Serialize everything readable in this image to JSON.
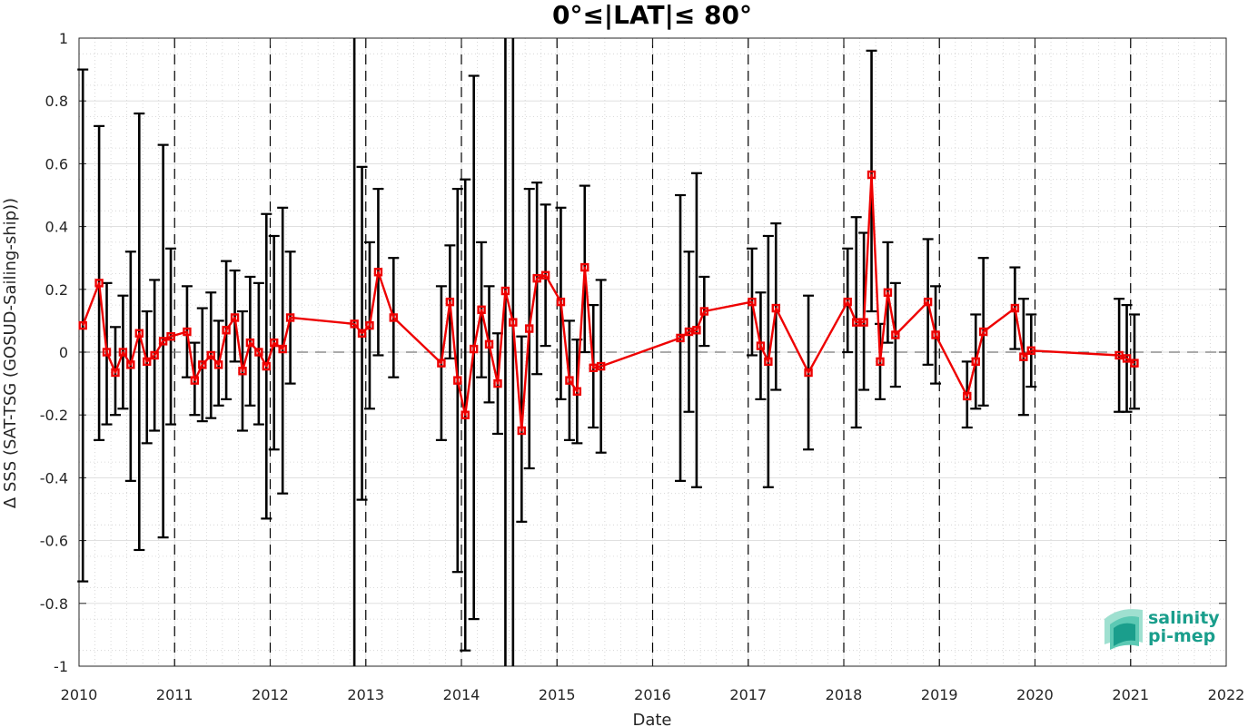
{
  "chart_data": {
    "type": "line",
    "title": "0°≤|LAT|≤ 80°",
    "xlabel": "Date",
    "ylabel": "Δ SSS (SAT-TSG (GOSUD-Sailing-ship))",
    "xlim": [
      2010,
      2022
    ],
    "ylim": [
      -1,
      1
    ],
    "x_ticks": [
      "2010",
      "2011",
      "2012",
      "2013",
      "2014",
      "2015",
      "2016",
      "2017",
      "2018",
      "2019",
      "2020",
      "2021",
      "2022"
    ],
    "y_ticks": [
      "-1",
      "-0.8",
      "-0.6",
      "-0.4",
      "-0.2",
      "0",
      "0.2",
      "0.4",
      "0.6",
      "0.8",
      "1"
    ],
    "grid": true,
    "year_separators": [
      2011,
      2012,
      2013,
      2014,
      2015,
      2016,
      2017,
      2018,
      2019,
      2020,
      2021
    ],
    "zero_line": 0,
    "series": [
      {
        "color": "#ee0000",
        "errorbar_color": "#000000",
        "x": [
          2010.04,
          2010.21,
          2010.29,
          2010.38,
          2010.46,
          2010.54,
          2010.63,
          2010.71,
          2010.79,
          2010.88,
          2010.96,
          2011.13,
          2011.21,
          2011.29,
          2011.38,
          2011.46,
          2011.54,
          2011.63,
          2011.71,
          2011.79,
          2011.88,
          2011.96,
          2012.04,
          2012.13,
          2012.21,
          2012.88,
          2012.96,
          2013.04,
          2013.13,
          2013.29,
          2013.79,
          2013.88,
          2013.96,
          2014.04,
          2014.13,
          2014.21,
          2014.29,
          2014.38,
          2014.46,
          2014.54,
          2014.63,
          2014.71,
          2014.79,
          2014.88,
          2015.04,
          2015.13,
          2015.21,
          2015.29,
          2015.38,
          2015.46,
          2016.29,
          2016.38,
          2016.46,
          2016.54,
          2017.04,
          2017.13,
          2017.21,
          2017.29,
          2017.63,
          2018.04,
          2018.13,
          2018.21,
          2018.29,
          2018.38,
          2018.46,
          2018.54,
          2018.88,
          2018.96,
          2019.29,
          2019.38,
          2019.46,
          2019.79,
          2019.88,
          2019.96,
          2020.88,
          2020.96,
          2021.04
        ],
        "y": [
          0.085,
          0.22,
          0.0,
          -0.065,
          0.0,
          -0.04,
          0.06,
          -0.03,
          -0.01,
          0.035,
          0.05,
          0.065,
          -0.09,
          -0.04,
          -0.01,
          -0.04,
          0.07,
          0.11,
          -0.06,
          0.03,
          0.0,
          -0.045,
          0.03,
          0.01,
          0.11,
          0.09,
          0.06,
          0.085,
          0.255,
          0.11,
          -0.035,
          0.16,
          -0.09,
          -0.2,
          0.01,
          0.135,
          0.025,
          -0.1,
          0.195,
          0.095,
          -0.25,
          0.075,
          0.235,
          0.245,
          0.16,
          -0.09,
          -0.125,
          0.27,
          -0.05,
          -0.045,
          0.045,
          0.065,
          0.07,
          0.13,
          0.16,
          0.02,
          -0.03,
          0.14,
          -0.065,
          0.16,
          0.095,
          0.095,
          0.565,
          -0.03,
          0.19,
          0.055,
          0.16,
          0.055,
          -0.14,
          -0.03,
          0.065,
          0.14,
          -0.015,
          0.005,
          -0.01,
          -0.02,
          -0.035
        ],
        "lower": [
          -0.73,
          -0.28,
          -0.23,
          -0.2,
          -0.18,
          -0.41,
          -0.63,
          -0.29,
          -0.25,
          -0.59,
          -0.23,
          -0.08,
          -0.2,
          -0.22,
          -0.21,
          -0.17,
          -0.15,
          -0.03,
          -0.25,
          -0.17,
          -0.23,
          -0.53,
          -0.31,
          -0.45,
          -0.1,
          -1.0,
          -0.47,
          -0.18,
          -0.01,
          -0.08,
          -0.28,
          -0.02,
          -0.7,
          -0.95,
          -0.85,
          -0.08,
          -0.16,
          -0.26,
          -1.0,
          -1.0,
          -0.54,
          -0.37,
          -0.07,
          0.02,
          -0.15,
          -0.28,
          -0.29,
          0.0,
          -0.24,
          -0.32,
          -0.41,
          -0.19,
          -0.43,
          0.02,
          -0.01,
          -0.15,
          -0.43,
          -0.12,
          -0.31,
          -0.0,
          -0.24,
          -0.12,
          0.13,
          -0.15,
          0.03,
          -0.11,
          -0.04,
          -0.1,
          -0.24,
          -0.18,
          -0.17,
          0.01,
          -0.2,
          -0.11,
          -0.19,
          -0.19,
          -0.18
        ],
        "upper": [
          0.9,
          0.72,
          0.22,
          0.08,
          0.18,
          0.32,
          0.76,
          0.13,
          0.23,
          0.66,
          0.33,
          0.21,
          0.03,
          0.14,
          0.19,
          0.1,
          0.29,
          0.26,
          0.13,
          0.24,
          0.22,
          0.44,
          0.37,
          0.46,
          0.32,
          1.0,
          0.59,
          0.35,
          0.52,
          0.3,
          0.21,
          0.34,
          0.52,
          0.55,
          0.88,
          0.35,
          0.21,
          0.06,
          1.0,
          1.0,
          0.05,
          0.52,
          0.54,
          0.47,
          0.46,
          0.1,
          0.04,
          0.53,
          0.15,
          0.23,
          0.5,
          0.32,
          0.57,
          0.24,
          0.33,
          0.19,
          0.37,
          0.41,
          0.18,
          0.33,
          0.43,
          0.38,
          0.96,
          0.09,
          0.35,
          0.22,
          0.36,
          0.21,
          -0.03,
          0.12,
          0.3,
          0.27,
          0.17,
          0.12,
          0.17,
          0.15,
          0.12
        ]
      }
    ]
  },
  "logo": {
    "line1": "salinity",
    "line2": "pi-mep",
    "colors": [
      "#1a9e8c",
      "#5cc9b4",
      "#9fe0d0"
    ]
  }
}
